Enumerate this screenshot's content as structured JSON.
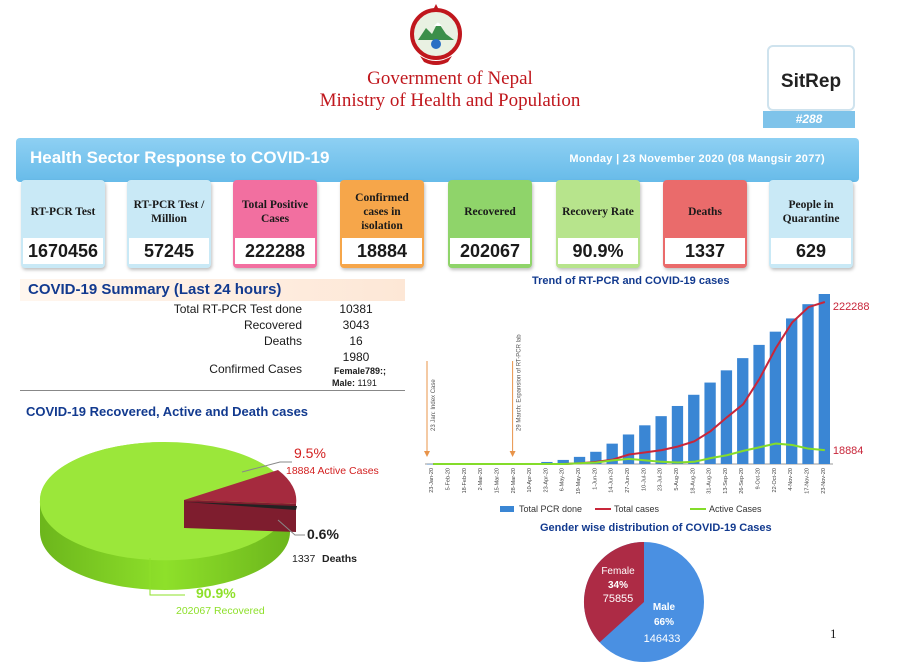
{
  "header": {
    "line1": "Government of Nepal",
    "line2": "Ministry of Health and Population",
    "sitrep_label": "SitRep",
    "sitrep_number": "#288"
  },
  "banner": {
    "title": "Health Sector Response to COVID-19",
    "date": "Monday | 23 November 2020 (08 Mangsir 2077)"
  },
  "cards": [
    {
      "label": "RT-PCR Test",
      "value": "1670456",
      "color": "#c9e9f6"
    },
    {
      "label": "RT-PCR Test / Million",
      "value": "57245",
      "color": "#c9e9f6"
    },
    {
      "label": "Total Positive Cases",
      "value": "222288",
      "color": "#f26fa0"
    },
    {
      "label": "Confirmed cases in isolation",
      "value": "18884",
      "color": "#f6a64a"
    },
    {
      "label": "Recovered",
      "value": "202067",
      "color": "#8fd46a"
    },
    {
      "label": "Recovery Rate",
      "value": "90.9%",
      "color": "#b7e48c"
    },
    {
      "label": "Deaths",
      "value": "1337",
      "color": "#ea6b6b"
    },
    {
      "label": "People in Quarantine",
      "value": "629",
      "color": "#c9e9f6"
    }
  ],
  "summary": {
    "title": "COVID-19 Summary (Last 24 hours)",
    "rows": [
      {
        "label": "Total RT-PCR Test done",
        "value": "10381"
      },
      {
        "label": "Recovered",
        "value": "3043"
      },
      {
        "label": "Deaths",
        "value": "16"
      },
      {
        "label": "Confirmed Cases",
        "value": "1980"
      }
    ],
    "female": "Female789:;",
    "male_label": "Male:",
    "male_value": "1191"
  },
  "pie3d": {
    "title": "COVID-19 Recovered, Active and Death cases",
    "active_pct": "9.5%",
    "active_label": "18884 Active Cases",
    "death_pct": "0.6%",
    "death_count": "1337",
    "death_label": "Deaths",
    "recovered_pct": "90.9%",
    "recovered_label": "202067 Recovered",
    "colors": {
      "recovered": "#8ee02a",
      "active": "#a52a3e",
      "death": "#222222"
    }
  },
  "gender": {
    "title": "Gender wise distribution of COVID-19 Cases",
    "female_label": "Female",
    "female_pct": "34%",
    "female_count": "75855",
    "male_label": "Male",
    "male_pct": "66%",
    "male_count": "146433",
    "colors": {
      "male": "#4a90e2",
      "female": "#ad2b45"
    }
  },
  "chart_data": {
    "type": "bar",
    "title": "Trend of RT-PCR and COVID-19 cases",
    "categories": [
      "23-Jan-20",
      "5-Feb-20",
      "18-Feb-20",
      "2-Mar-20",
      "15-Mar-20",
      "28-Mar-20",
      "10-Apr-20",
      "23-Apr-20",
      "6-May-20",
      "19-May-20",
      "1-Jun-20",
      "14-Jun-20",
      "27-Jun-20",
      "10-Jul-20",
      "23-Jul-20",
      "5-Aug-20",
      "18-Aug-20",
      "31-Aug-20",
      "13-Sep-20",
      "26-Sep-20",
      "9-Oct-20",
      "22-Oct-20",
      "4-Nov-20",
      "17-Nov-20",
      "23-Nov-20"
    ],
    "series": [
      {
        "name": "Total PCR done",
        "values": [
          1,
          1,
          1,
          2,
          3,
          5,
          10,
          20,
          40,
          70,
          120,
          200,
          290,
          380,
          470,
          570,
          680,
          800,
          920,
          1040,
          1170,
          1300,
          1430,
          1570,
          1670
        ]
      },
      {
        "name": "Total  cases",
        "values": [
          0,
          0,
          0,
          0,
          0,
          0,
          0,
          0,
          0,
          1,
          3,
          6,
          13,
          16,
          19,
          24,
          31,
          45,
          64,
          82,
          117,
          159,
          194,
          215,
          222
        ]
      },
      {
        "name": "Active Cases",
        "values": [
          0,
          0,
          0,
          0,
          0,
          0,
          0,
          0,
          0,
          1,
          2,
          5,
          7,
          5,
          3,
          2,
          3,
          8,
          12,
          18,
          23,
          28,
          26,
          21,
          19
        ]
      }
    ],
    "end_labels": {
      "total": "222288",
      "active": "18884"
    },
    "annotations": [
      "23 Jan: Index Case",
      "29 March: Expansion of RT-PCR lab"
    ],
    "colors": {
      "bars": "#3a86d4",
      "total": "#c8263a",
      "active": "#84dc2a"
    }
  },
  "page_number": "1"
}
